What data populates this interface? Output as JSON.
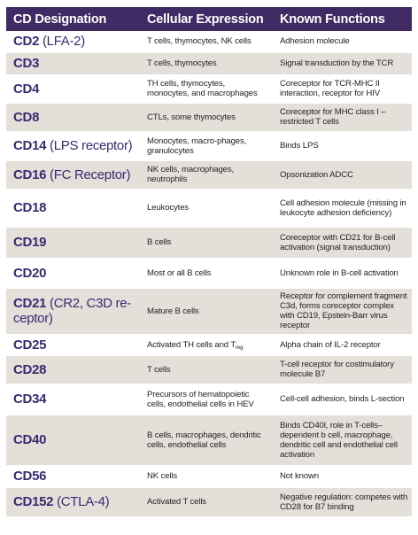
{
  "header": {
    "col1": "CD Designation",
    "col2": "Cellular Expression",
    "col3": "Known Functions"
  },
  "rows": [
    {
      "id": "CD2",
      "alias": " (LFA-2)",
      "expression": "T cells, thymocytes, NK cells",
      "functions": "Adhesion molecule"
    },
    {
      "id": "CD3",
      "alias": "",
      "expression": "T cells, thymocytes",
      "functions": "Signal transduction by the TCR"
    },
    {
      "id": "CD4",
      "alias": "",
      "expression": "TH cells, thymocytes, monocytes, and macrophages",
      "functions": "Coreceptor for TCR-MHC II interaction, receptor for HIV"
    },
    {
      "id": "CD8",
      "alias": "",
      "expression": "CTLs, some thymocytes",
      "functions": "Coreceptor for MHC class I – restricted T cells"
    },
    {
      "id": "CD14",
      "alias": " (LPS receptor)",
      "expression": "Monocytes, macro-phages, granulocytes",
      "functions": "Binds LPS"
    },
    {
      "id": "CD16",
      "alias": " (FC Receptor)",
      "expression": "NK cells, macrophages, neutrophils",
      "functions": "Opsonization ADCC"
    },
    {
      "id": "CD18",
      "alias": "",
      "expression": "Leukocytes",
      "functions": "Cell adhesion molecule (missing in leukocyte adhesion deficiency)"
    },
    {
      "id": "CD19",
      "alias": "",
      "expression": "B cells",
      "functions": "Coreceptor with CD21 for B-cell activation (signal transduction)"
    },
    {
      "id": "CD20",
      "alias": "",
      "expression": "Most or all B cells",
      "functions": "Unknown role in B-cell activation"
    },
    {
      "id": "CD21",
      "alias": " (CR2, C3D re-ceptor)",
      "expression": "Mature B cells",
      "functions": "Receptor for complement fragment C3d, forms coreceptor complex with CD19, Epstein-Barr virus receptor"
    },
    {
      "id": "CD25",
      "alias": "",
      "expression": "Activated TH cells and T",
      "expression_sub": "reg",
      "functions": "Alpha chain of IL-2 receptor"
    },
    {
      "id": "CD28",
      "alias": "",
      "expression": "T cells",
      "functions": "T-cell receptor for costimulatory molecule B7"
    },
    {
      "id": "CD34",
      "alias": "",
      "expression": "Precursors of hematopoietic cells, endothelial cells in HEV",
      "functions": "Cell-cell adhesion, binds L-section"
    },
    {
      "id": "CD40",
      "alias": "",
      "expression": "B cells, macrophages, dendritic cells, endothelial cells",
      "functions": "Binds CD40l, role in T-cells–dependent b cell, macrophage, dendritic cell and endothelial cell activation"
    },
    {
      "id": "CD56",
      "alias": "",
      "expression": "NK cells",
      "functions": "Not known"
    },
    {
      "id": "CD152",
      "alias": " (CTLA-4)",
      "expression": "Activated T cells",
      "functions": "Negative regulation: competes with CD28 for B7 binding"
    }
  ]
}
